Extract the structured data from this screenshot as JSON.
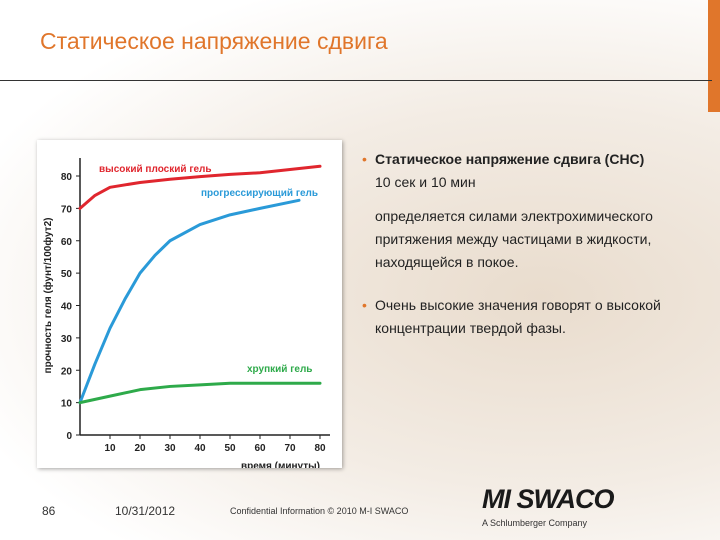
{
  "title": "Статическое напряжение сдвига",
  "bullets": [
    {
      "lines": [
        "Статическое напряжение сдвига (СНС)",
        "10 сек и 10 мин",
        "определяется силами электрохимического",
        "притяжения между частицами в жидкости,",
        "находящейся в покое."
      ]
    },
    {
      "lines": [
        "Очень высокие значения говорят о высокой",
        "концентрации твердой фазы."
      ]
    }
  ],
  "footer": {
    "page": "86",
    "date": "10/31/2012",
    "confidential": "Confidential Information © 2010 M-I SWACO",
    "logo": "MI SWACO",
    "logo_sub": "A Schlumberger Company"
  },
  "chart_data": {
    "type": "line",
    "ylabel": "прочность геля (фунт/100фут2)",
    "xlabel": "время (минуты)",
    "xlim": [
      0,
      80
    ],
    "xticks": [
      10,
      20,
      30,
      40,
      50,
      60,
      70,
      80
    ],
    "ylim": [
      0,
      80
    ],
    "yticks": [
      0,
      10,
      20,
      30,
      40,
      50,
      60,
      70,
      80
    ],
    "series": [
      {
        "name": "высокий плоский гель",
        "color": "#e0262e",
        "x": [
          0,
          5,
          10,
          20,
          30,
          40,
          50,
          60,
          70,
          80
        ],
        "values": [
          70,
          74,
          76.5,
          78,
          79,
          79.8,
          80.5,
          81,
          82,
          83
        ]
      },
      {
        "name": "прогрессирующий гель",
        "color": "#2a9ad8",
        "x": [
          0,
          5,
          10,
          15,
          20,
          25,
          30,
          40,
          50,
          60,
          73
        ],
        "values": [
          10,
          22,
          33,
          42,
          50,
          55.5,
          60,
          65,
          68,
          70,
          72.5
        ]
      },
      {
        "name": "хрупкий гель",
        "color": "#2eaa4a",
        "x": [
          0,
          5,
          10,
          20,
          30,
          40,
          50,
          60,
          70,
          80
        ],
        "values": [
          10,
          11,
          12,
          14,
          15,
          15.5,
          16,
          16,
          16,
          16
        ]
      }
    ]
  }
}
